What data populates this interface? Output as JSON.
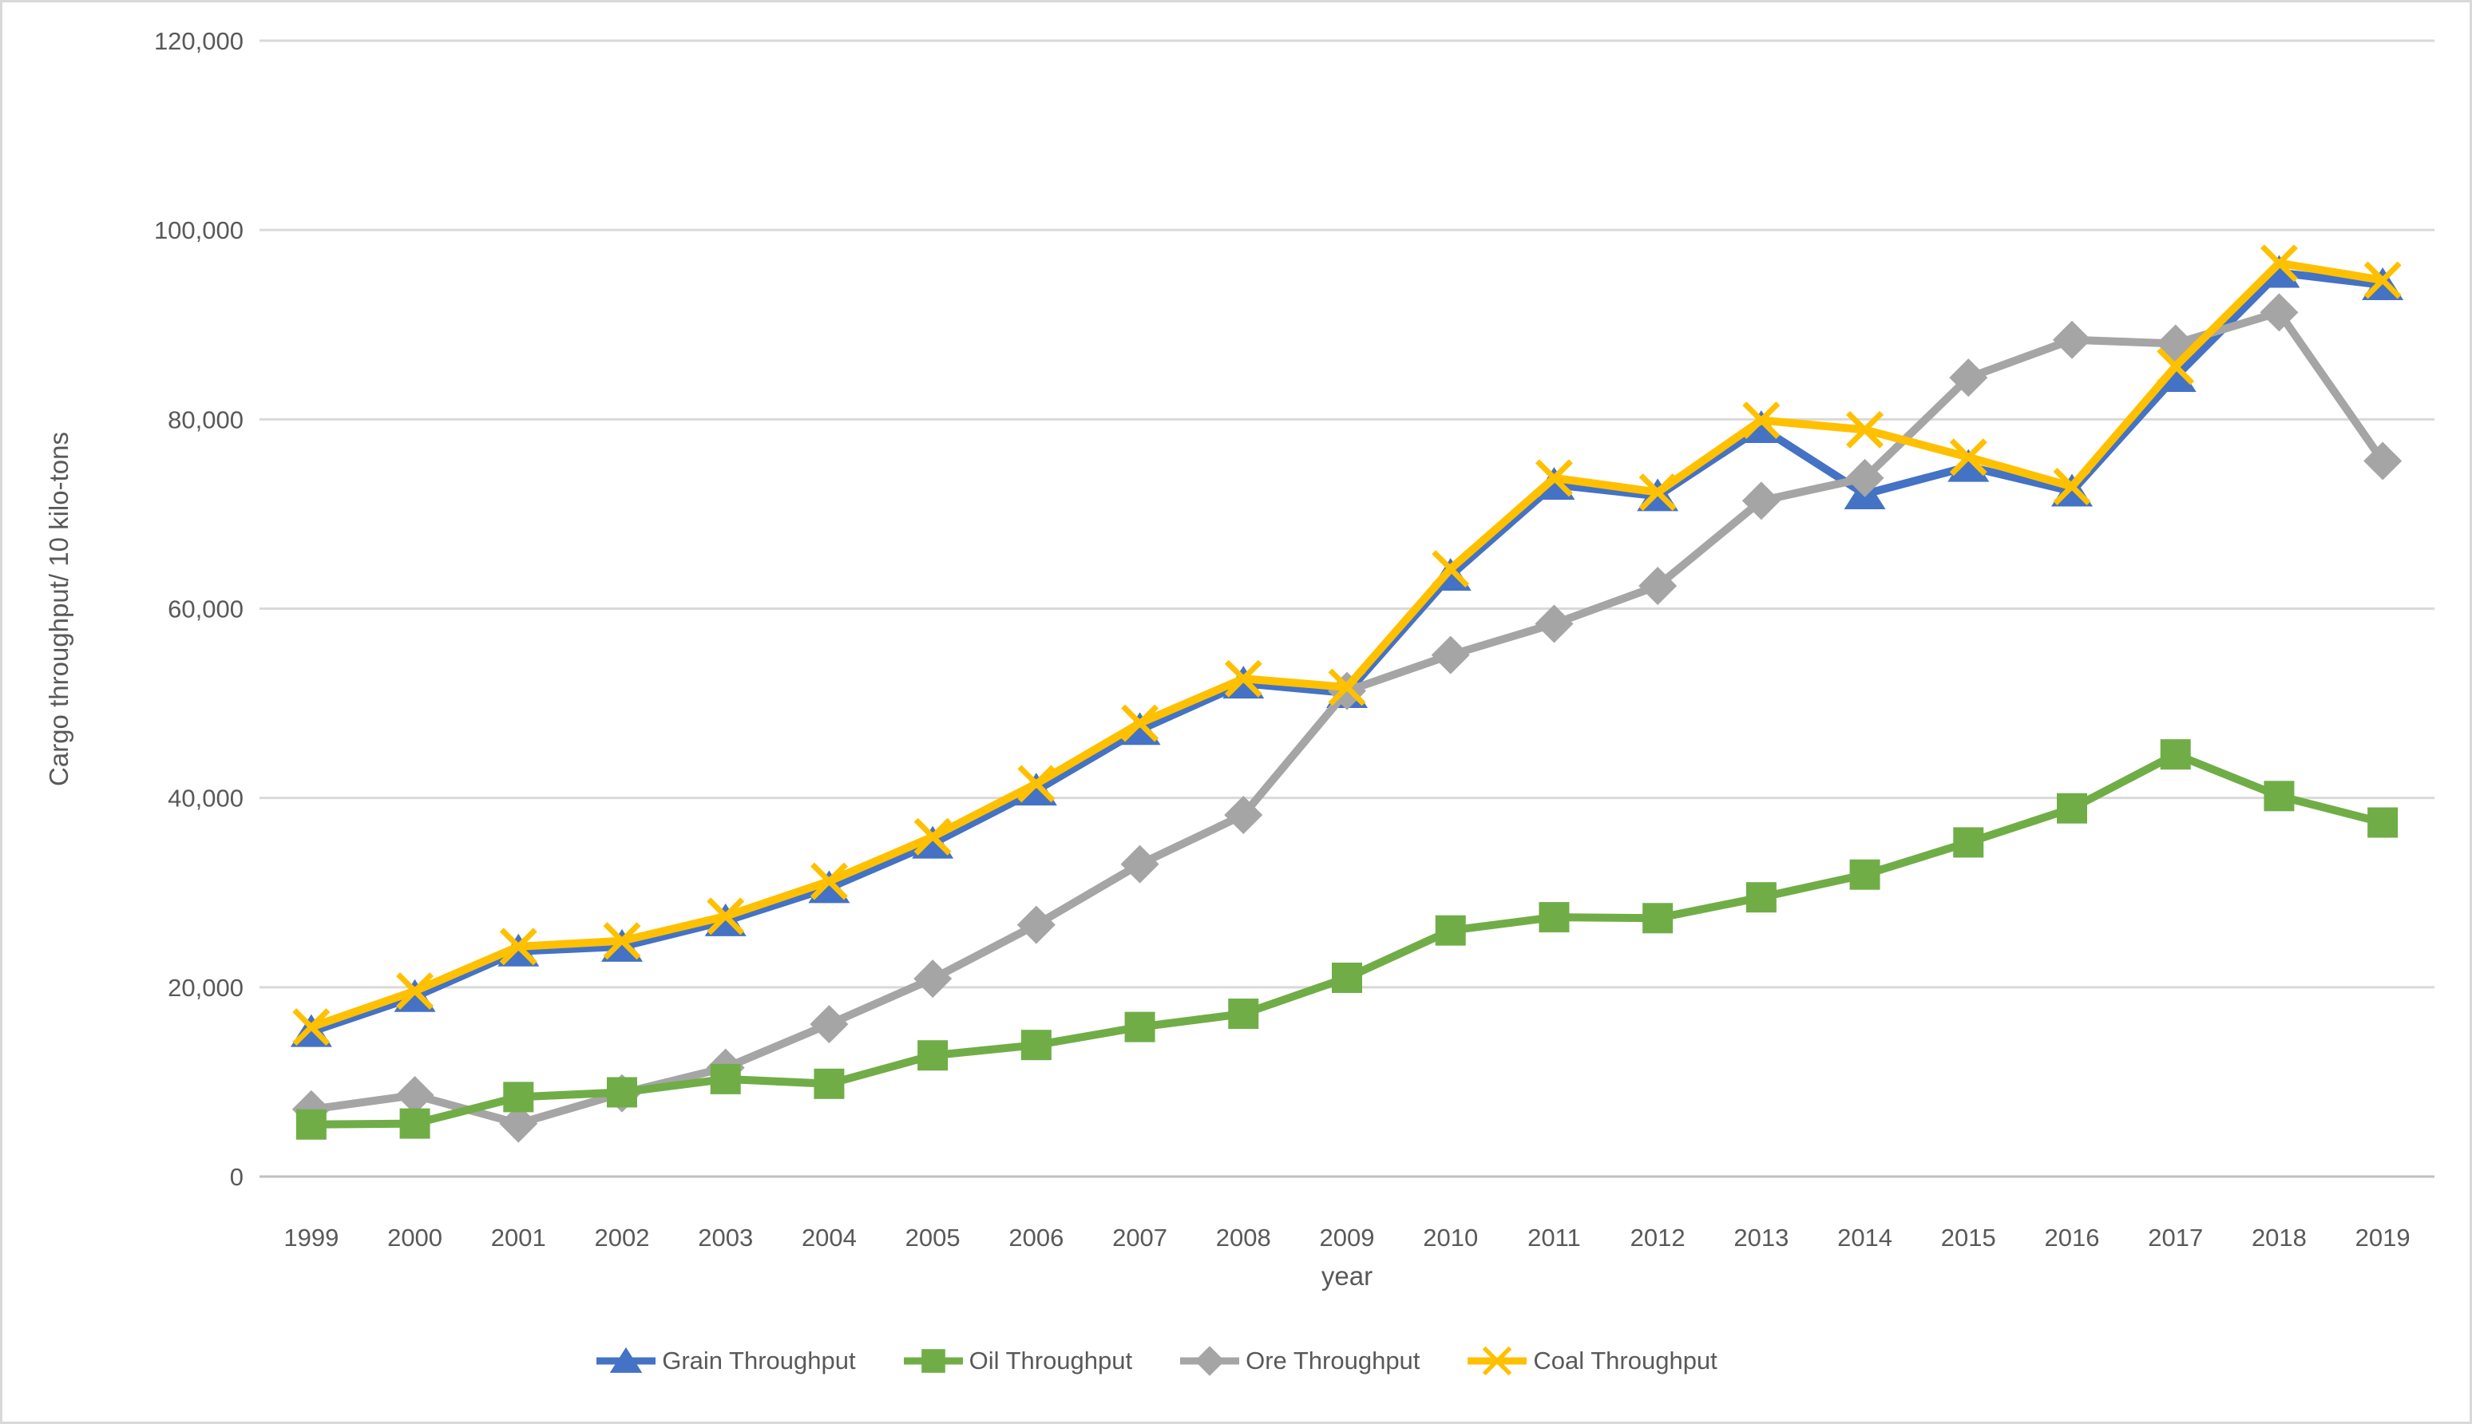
{
  "figure": {
    "background_color": "#ffffff",
    "border_color": "#d9d9d9",
    "gridline_color": "#d9d9d9",
    "axis_line_color": "#bfbfbf",
    "text_color": "#595959"
  },
  "chart_data": {
    "type": "line",
    "title": "",
    "xlabel": "year",
    "ylabel": "Cargo throughput/ 10 kilo-tons",
    "ylim": [
      0,
      120000
    ],
    "ytick_step": 20000,
    "ytick_labels": [
      "0",
      "20,000",
      "40,000",
      "60,000",
      "80,000",
      "100,000",
      "120,000"
    ],
    "grid": true,
    "legend_position": "bottom",
    "x": [
      "1999",
      "2000",
      "2001",
      "2002",
      "2003",
      "2004",
      "2005",
      "2006",
      "2007",
      "2008",
      "2009",
      "2010",
      "2011",
      "2012",
      "2013",
      "2014",
      "2015",
      "2016",
      "2017",
      "2018",
      "2019"
    ],
    "series": [
      {
        "name": "Grain Throughput",
        "color": "#4472C4",
        "marker": "triangle",
        "values": [
          15300,
          19000,
          23800,
          24300,
          27000,
          30500,
          35200,
          40800,
          47200,
          52100,
          51100,
          63500,
          73100,
          71900,
          79100,
          72100,
          75000,
          72400,
          84500,
          95500,
          94200
        ]
      },
      {
        "name": "Oil Throughput",
        "color": "#70AD47",
        "marker": "square",
        "values": [
          5500,
          5600,
          8400,
          8900,
          10300,
          9800,
          12800,
          13900,
          15800,
          17200,
          21000,
          26000,
          27400,
          27300,
          29500,
          31900,
          35300,
          38900,
          44600,
          40200,
          37400
        ]
      },
      {
        "name": "Ore Throughput",
        "color": "#A5A5A5",
        "marker": "diamond",
        "values": [
          7100,
          8600,
          5600,
          8800,
          11500,
          16100,
          20900,
          26600,
          33000,
          38200,
          51300,
          55100,
          58400,
          62400,
          71400,
          73800,
          84400,
          88400,
          88000,
          91300,
          75600
        ]
      },
      {
        "name": "Coal Throughput",
        "color": "#FFC000",
        "marker": "x",
        "values": [
          15800,
          19600,
          24300,
          24900,
          27500,
          31200,
          35900,
          41500,
          47900,
          52600,
          51700,
          64200,
          73800,
          72300,
          79900,
          78900,
          76000,
          72900,
          85600,
          96500,
          94700
        ]
      }
    ],
    "draw_order": [
      0,
      2,
      1,
      3
    ]
  }
}
